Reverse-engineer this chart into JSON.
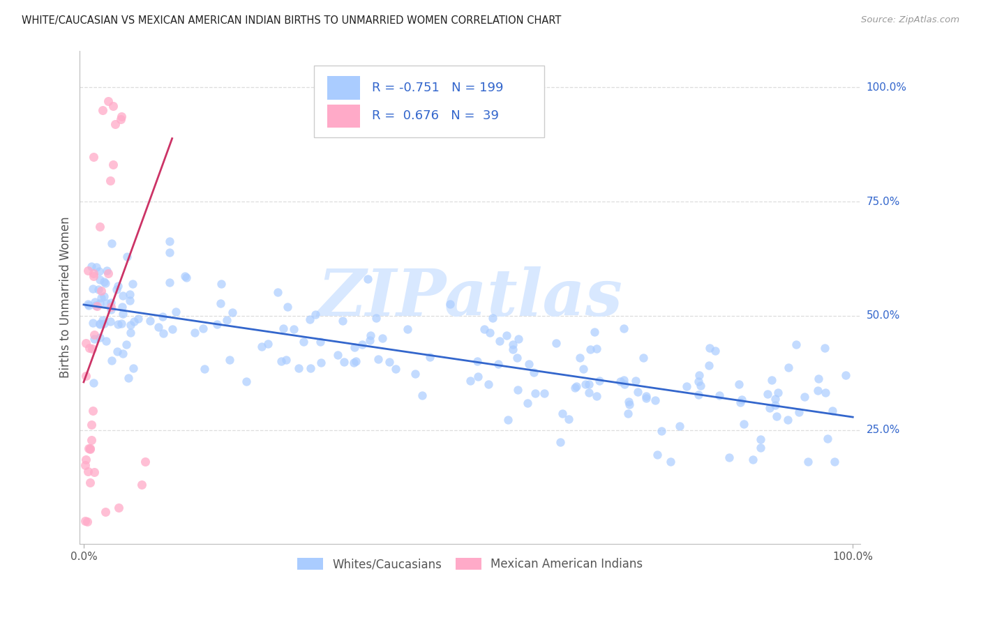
{
  "title": "WHITE/CAUCASIAN VS MEXICAN AMERICAN INDIAN BIRTHS TO UNMARRIED WOMEN CORRELATION CHART",
  "source": "Source: ZipAtlas.com",
  "x_left_label": "0.0%",
  "x_right_label": "100.0%",
  "ylabel": "Births to Unmarried Women",
  "right_ytick_vals": [
    0.25,
    0.5,
    0.75,
    1.0
  ],
  "right_ytick_labels": [
    "25.0%",
    "50.0%",
    "75.0%",
    "100.0%"
  ],
  "blue_R": "-0.751",
  "blue_N": "199",
  "pink_R": "0.676",
  "pink_N": "39",
  "legend_blue_label": "Whites/Caucasians",
  "legend_pink_label": "Mexican American Indians",
  "blue_scatter_color": "#AACCFF",
  "pink_scatter_color": "#FFAAC8",
  "blue_line_color": "#3366CC",
  "pink_line_color": "#CC3366",
  "legend_text_color": "#3366CC",
  "watermark_text": "ZIPatlas",
  "watermark_color": "#D8E8FF",
  "background_color": "#FFFFFF",
  "grid_color": "#DDDDDD",
  "title_color": "#222222",
  "ylabel_color": "#555555",
  "right_tick_color": "#3366CC",
  "seed": 42,
  "marker_size": 80
}
